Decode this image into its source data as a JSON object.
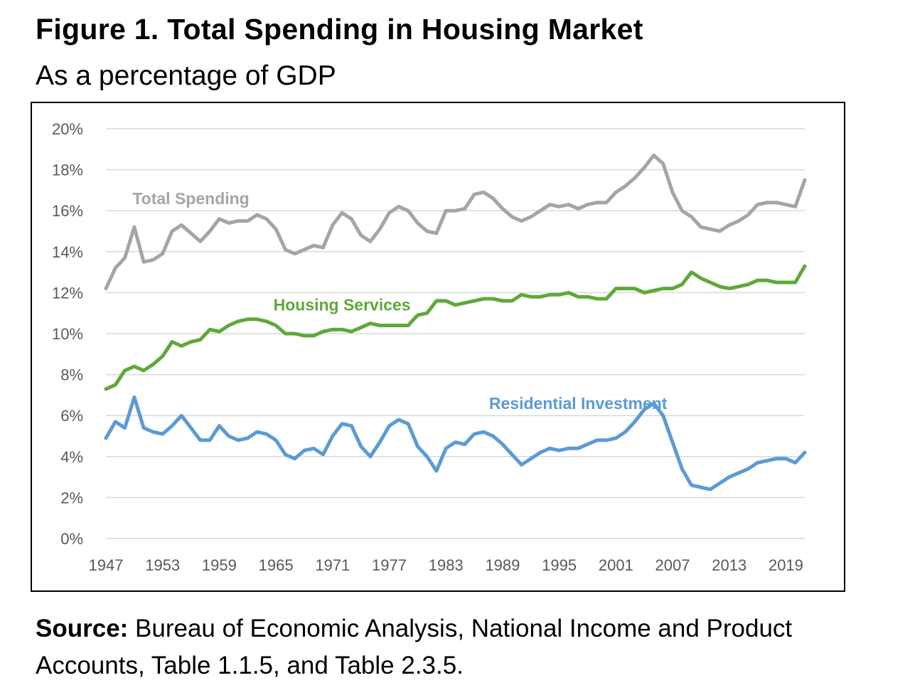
{
  "figure": {
    "title": "Figure 1. Total Spending in Housing Market",
    "subtitle": "As a percentage of GDP",
    "source_label": "Source:",
    "source_text": " Bureau of Economic Analysis, National Income and Product Accounts, Table 1.1.5, and Table 2.3.5."
  },
  "chart_data": {
    "type": "line",
    "title": "Figure 1. Total Spending in Housing Market",
    "subtitle": "As a percentage of GDP",
    "xlabel": "",
    "ylabel": "",
    "ylim": [
      0,
      20
    ],
    "yticks": [
      "0%",
      "2%",
      "4%",
      "6%",
      "8%",
      "10%",
      "12%",
      "14%",
      "16%",
      "18%",
      "20%"
    ],
    "yticks_values": [
      0,
      2,
      4,
      6,
      8,
      10,
      12,
      14,
      16,
      18,
      20
    ],
    "xlim": [
      1947,
      2021
    ],
    "xticks": [
      "1947",
      "1953",
      "1959",
      "1965",
      "1971",
      "1977",
      "1983",
      "1989",
      "1995",
      "2001",
      "2007",
      "2013",
      "2019"
    ],
    "xticks_values": [
      1947,
      1953,
      1959,
      1965,
      1971,
      1977,
      1983,
      1989,
      1995,
      2001,
      2007,
      2013,
      2019
    ],
    "grid": "horizontal",
    "legend": "inline labels",
    "x": [
      1947,
      1948,
      1949,
      1950,
      1951,
      1952,
      1953,
      1954,
      1955,
      1956,
      1957,
      1958,
      1959,
      1960,
      1961,
      1962,
      1963,
      1964,
      1965,
      1966,
      1967,
      1968,
      1969,
      1970,
      1971,
      1972,
      1973,
      1974,
      1975,
      1976,
      1977,
      1978,
      1979,
      1980,
      1981,
      1982,
      1983,
      1984,
      1985,
      1986,
      1987,
      1988,
      1989,
      1990,
      1991,
      1992,
      1993,
      1994,
      1995,
      1996,
      1997,
      1998,
      1999,
      2000,
      2001,
      2002,
      2003,
      2004,
      2005,
      2006,
      2007,
      2008,
      2009,
      2010,
      2011,
      2012,
      2013,
      2014,
      2015,
      2016,
      2017,
      2018,
      2019,
      2020,
      2021
    ],
    "series": [
      {
        "name": "Total Spending",
        "color": "#a5a5a5",
        "values": [
          12.2,
          13.2,
          13.7,
          15.2,
          13.5,
          13.6,
          13.9,
          15.0,
          15.3,
          14.9,
          14.5,
          15.0,
          15.6,
          15.4,
          15.5,
          15.5,
          15.8,
          15.6,
          15.1,
          14.1,
          13.9,
          14.1,
          14.3,
          14.2,
          15.3,
          15.9,
          15.6,
          14.8,
          14.5,
          15.1,
          15.9,
          16.2,
          16.0,
          15.4,
          15.0,
          14.9,
          16.0,
          16.0,
          16.1,
          16.8,
          16.9,
          16.6,
          16.1,
          15.7,
          15.5,
          15.7,
          16.0,
          16.3,
          16.2,
          16.3,
          16.1,
          16.3,
          16.4,
          16.4,
          16.9,
          17.2,
          17.6,
          18.1,
          18.7,
          18.3,
          16.9,
          16.0,
          15.7,
          15.2,
          15.1,
          15.0,
          15.3,
          15.5,
          15.8,
          16.3,
          16.4,
          16.4,
          16.3,
          16.2,
          17.5
        ]
      },
      {
        "name": "Housing Services",
        "color": "#5fa83a",
        "values": [
          7.3,
          7.5,
          8.2,
          8.4,
          8.2,
          8.5,
          8.9,
          9.6,
          9.4,
          9.6,
          9.7,
          10.2,
          10.1,
          10.4,
          10.6,
          10.7,
          10.7,
          10.6,
          10.4,
          10.0,
          10.0,
          9.9,
          9.9,
          10.1,
          10.2,
          10.2,
          10.1,
          10.3,
          10.5,
          10.4,
          10.4,
          10.4,
          10.4,
          10.9,
          11.0,
          11.6,
          11.6,
          11.4,
          11.5,
          11.6,
          11.7,
          11.7,
          11.6,
          11.6,
          11.9,
          11.8,
          11.8,
          11.9,
          11.9,
          12.0,
          11.8,
          11.8,
          11.7,
          11.7,
          12.2,
          12.2,
          12.2,
          12.0,
          12.1,
          12.2,
          12.2,
          12.4,
          13.0,
          12.7,
          12.5,
          12.3,
          12.2,
          12.3,
          12.4,
          12.6,
          12.6,
          12.5,
          12.5,
          12.5,
          13.3
        ]
      },
      {
        "name": "Residential Investment",
        "color": "#5b9bd5",
        "values": [
          4.9,
          5.7,
          5.4,
          6.9,
          5.4,
          5.2,
          5.1,
          5.5,
          6.0,
          5.4,
          4.8,
          4.8,
          5.5,
          5.0,
          4.8,
          4.9,
          5.2,
          5.1,
          4.8,
          4.1,
          3.9,
          4.3,
          4.4,
          4.1,
          5.0,
          5.6,
          5.5,
          4.5,
          4.0,
          4.7,
          5.5,
          5.8,
          5.6,
          4.5,
          4.0,
          3.3,
          4.4,
          4.7,
          4.6,
          5.1,
          5.2,
          5.0,
          4.6,
          4.1,
          3.6,
          3.9,
          4.2,
          4.4,
          4.3,
          4.4,
          4.4,
          4.6,
          4.8,
          4.8,
          4.9,
          5.2,
          5.7,
          6.3,
          6.6,
          6.0,
          4.7,
          3.4,
          2.6,
          2.5,
          2.4,
          2.7,
          3.0,
          3.2,
          3.4,
          3.7,
          3.8,
          3.9,
          3.9,
          3.7,
          4.2
        ]
      }
    ],
    "annotations": [
      {
        "text": "Total Spending",
        "series": "Total Spending",
        "x": 1956,
        "y": 16.6
      },
      {
        "text": "Housing Services",
        "series": "Housing Services",
        "x": 1972,
        "y": 11.4
      },
      {
        "text": "Residential Investment",
        "series": "Residential Investment",
        "x": 1997,
        "y": 6.6
      }
    ]
  }
}
